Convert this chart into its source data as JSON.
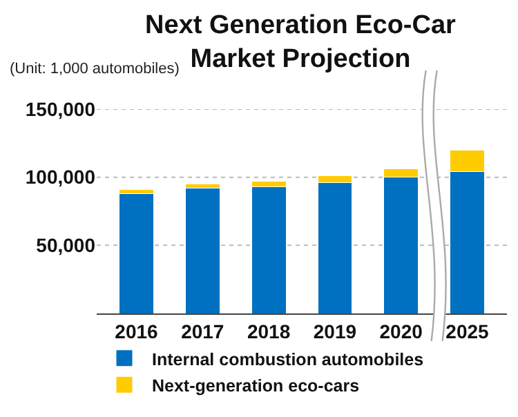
{
  "chart_data": {
    "type": "bar",
    "title": "Next Generation Eco-Car\nMarket Projection",
    "annotations": [
      "(Unit: 1,000 automobiles)"
    ],
    "categories": [
      "2016",
      "2017",
      "2018",
      "2019",
      "2020",
      "2025"
    ],
    "series": [
      {
        "name": "Internal combustion automobiles",
        "color": "#0070c0",
        "values": [
          88000,
          92000,
          93000,
          96000,
          100000,
          104000
        ]
      },
      {
        "name": "Next-generation eco-cars",
        "color": "#ffcc00",
        "values": [
          3000,
          3000,
          4000,
          5000,
          6000,
          16000
        ]
      }
    ],
    "stacked": true,
    "ylim": [
      0,
      150000
    ],
    "yticks": [
      {
        "value": 50000,
        "label": "50,000"
      },
      {
        "value": 100000,
        "label": "100,000"
      },
      {
        "value": 150000,
        "label": "150,000"
      }
    ],
    "grid": "y",
    "legend": "bottom"
  }
}
